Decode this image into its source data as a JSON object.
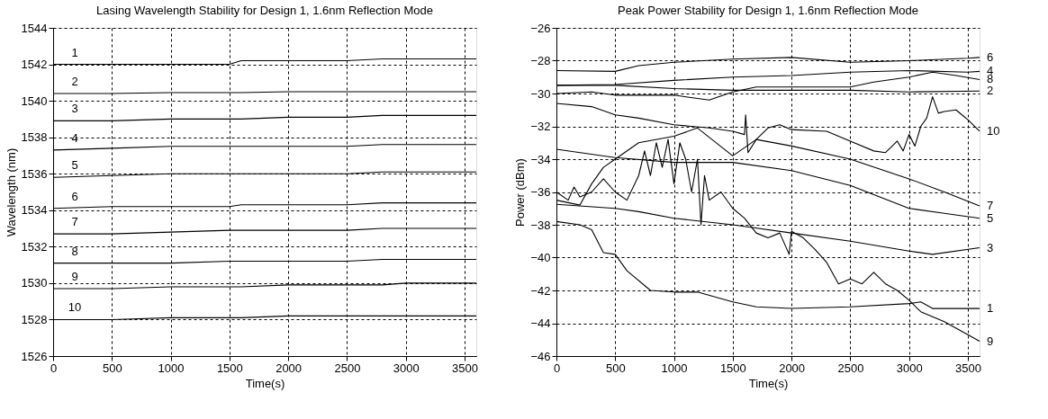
{
  "chart_data": [
    {
      "type": "line",
      "title": "Lasing Wavelength Stability for Design 1, 1.6nm Reflection Mode",
      "xlabel": "Time(s)",
      "ylabel": "Wavelength (nm)",
      "xlim": [
        0,
        3600
      ],
      "ylim": [
        1526,
        1544
      ],
      "xticks": [
        0,
        500,
        1000,
        1500,
        2000,
        2500,
        3000,
        3500
      ],
      "yticks": [
        1526,
        1528,
        1530,
        1532,
        1534,
        1536,
        1538,
        1540,
        1542,
        1544
      ],
      "grid": true,
      "legend": false,
      "x": [
        0,
        500,
        1000,
        1500,
        1600,
        2000,
        2500,
        2800,
        3000,
        3600
      ],
      "series": [
        {
          "name": "1",
          "color": "#000000",
          "values": [
            1542.0,
            1542.0,
            1542.0,
            1542.0,
            1542.2,
            1542.2,
            1542.2,
            1542.3,
            1542.3,
            1542.3
          ]
        },
        {
          "name": "2",
          "color": "#000000",
          "values": [
            1540.4,
            1540.4,
            1540.45,
            1540.45,
            1540.45,
            1540.5,
            1540.5,
            1540.5,
            1540.5,
            1540.5
          ]
        },
        {
          "name": "3",
          "color": "#000000",
          "values": [
            1538.9,
            1538.9,
            1539.0,
            1539.0,
            1539.0,
            1539.1,
            1539.1,
            1539.2,
            1539.2,
            1539.2
          ]
        },
        {
          "name": "4",
          "color": "#000000",
          "values": [
            1537.3,
            1537.4,
            1537.5,
            1537.5,
            1537.5,
            1537.5,
            1537.5,
            1537.6,
            1537.6,
            1537.6
          ]
        },
        {
          "name": "5",
          "color": "#000000",
          "values": [
            1535.8,
            1535.9,
            1536.0,
            1536.0,
            1536.0,
            1536.0,
            1536.0,
            1536.1,
            1536.1,
            1536.1
          ]
        },
        {
          "name": "6",
          "color": "#000000",
          "values": [
            1534.1,
            1534.2,
            1534.2,
            1534.2,
            1534.3,
            1534.3,
            1534.3,
            1534.4,
            1534.4,
            1534.4
          ]
        },
        {
          "name": "7",
          "color": "#000000",
          "values": [
            1532.7,
            1532.7,
            1532.8,
            1532.9,
            1532.9,
            1532.9,
            1532.9,
            1533.0,
            1533.0,
            1533.0
          ]
        },
        {
          "name": "8",
          "color": "#000000",
          "values": [
            1531.1,
            1531.1,
            1531.1,
            1531.2,
            1531.2,
            1531.2,
            1531.2,
            1531.3,
            1531.3,
            1531.3
          ]
        },
        {
          "name": "9",
          "color": "#000000",
          "values": [
            1529.7,
            1529.7,
            1529.8,
            1529.8,
            1529.8,
            1529.9,
            1529.9,
            1529.9,
            1530.0,
            1530.0
          ]
        },
        {
          "name": "10",
          "color": "#000000",
          "values": [
            1528.0,
            1528.0,
            1528.1,
            1528.1,
            1528.1,
            1528.2,
            1528.2,
            1528.2,
            1528.2,
            1528.2
          ]
        }
      ]
    },
    {
      "type": "line",
      "title": "Peak Power Stability for Design 1, 1.6nm Reflection Mode",
      "xlabel": "Time(s)",
      "ylabel": "Power (dBm)",
      "xlim": [
        0,
        3600
      ],
      "ylim": [
        -46,
        -26
      ],
      "xticks": [
        0,
        500,
        1000,
        1500,
        2000,
        2500,
        3000,
        3500
      ],
      "yticks": [
        -46,
        -44,
        -42,
        -40,
        -38,
        -36,
        -34,
        -32,
        -30,
        -28,
        -26
      ],
      "grid": true,
      "legend": false,
      "series": [
        {
          "name": "6",
          "color": "#000000",
          "x": [
            0,
            500,
            700,
            1000,
            1500,
            2000,
            2500,
            3000,
            3500,
            3600
          ],
          "values": [
            -28.6,
            -28.65,
            -28.3,
            -28.1,
            -27.9,
            -27.8,
            -28.1,
            -28.0,
            -27.85,
            -27.8
          ]
        },
        {
          "name": "4",
          "color": "#000000",
          "x": [
            0,
            500,
            1000,
            1500,
            2000,
            2500,
            3000,
            3500,
            3600
          ],
          "values": [
            -29.5,
            -29.45,
            -29.2,
            -29.0,
            -28.9,
            -28.7,
            -28.6,
            -28.7,
            -28.65
          ]
        },
        {
          "name": "8",
          "color": "#000000",
          "x": [
            0,
            300,
            500,
            1000,
            1300,
            1500,
            1700,
            2000,
            2500,
            2700,
            3000,
            3200,
            3400,
            3600
          ],
          "values": [
            -30.0,
            -29.9,
            -30.1,
            -30.1,
            -30.4,
            -29.9,
            -29.6,
            -29.6,
            -29.6,
            -29.3,
            -29.0,
            -28.7,
            -28.9,
            -29.15
          ]
        },
        {
          "name": "2",
          "color": "#000000",
          "x": [
            0,
            500,
            1000,
            1500,
            2000,
            2500,
            3000,
            3600
          ],
          "values": [
            -29.5,
            -29.5,
            -29.7,
            -29.8,
            -29.8,
            -29.8,
            -29.9,
            -29.85
          ]
        },
        {
          "name": "10",
          "color": "#000000",
          "x": [
            0,
            300,
            500,
            700,
            1000,
            1300,
            1500,
            1600,
            1610,
            1630,
            1700,
            1800,
            1900,
            2000,
            2300,
            2500,
            2700,
            2800,
            2900,
            2950,
            3000,
            3050,
            3100,
            3150,
            3200,
            3250,
            3300,
            3400,
            3450,
            3500,
            3600
          ],
          "values": [
            -30.6,
            -30.8,
            -31.3,
            -31.5,
            -31.9,
            -32.1,
            -32.3,
            -32.5,
            -31.3,
            -33.6,
            -32.8,
            -32.1,
            -31.9,
            -32.2,
            -32.3,
            -32.9,
            -33.5,
            -33.6,
            -32.9,
            -33.5,
            -32.5,
            -33.2,
            -32.0,
            -31.5,
            -30.2,
            -31.2,
            -31.1,
            -31.0,
            -31.3,
            -31.6,
            -32.3
          ]
        },
        {
          "name": "7",
          "color": "#000000",
          "x": [
            0,
            200,
            300,
            400,
            500,
            700,
            1000,
            1200,
            1500,
            1700,
            2000,
            2500,
            3000,
            3300,
            3600
          ],
          "values": [
            -36.5,
            -36.8,
            -35.5,
            -34.5,
            -34.0,
            -33.0,
            -32.6,
            -32.1,
            -33.8,
            -32.8,
            -33.2,
            -34.0,
            -35.2,
            -36.0,
            -36.85
          ]
        },
        {
          "name": "5",
          "color": "#000000",
          "x": [
            0,
            500,
            1000,
            1500,
            2000,
            2500,
            3000,
            3300,
            3600
          ],
          "values": [
            -33.4,
            -33.9,
            -34.2,
            -34.2,
            -34.7,
            -35.6,
            -37.0,
            -37.3,
            -37.6
          ]
        },
        {
          "name": "3",
          "color": "#000000",
          "x": [
            0,
            500,
            700,
            1000,
            1500,
            2000,
            2500,
            3000,
            3200,
            3600
          ],
          "values": [
            -36.75,
            -37.0,
            -37.2,
            -37.6,
            -38.0,
            -38.5,
            -39.0,
            -39.6,
            -39.8,
            -39.4
          ]
        },
        {
          "name": "1",
          "color": "#000000",
          "x": [
            0,
            200,
            300,
            400,
            500,
            600,
            800,
            1000,
            1200,
            1500,
            1700,
            2000,
            2500,
            3000,
            3100,
            3200,
            3600
          ],
          "values": [
            -37.8,
            -38.0,
            -38.3,
            -39.7,
            -39.8,
            -40.8,
            -42.0,
            -42.1,
            -42.1,
            -42.7,
            -43.0,
            -43.1,
            -43.0,
            -42.8,
            -42.7,
            -43.1,
            -43.1
          ]
        },
        {
          "name": "9",
          "color": "#000000",
          "x": [
            0,
            100,
            150,
            200,
            300,
            400,
            500,
            600,
            700,
            750,
            800,
            850,
            900,
            950,
            1000,
            1050,
            1100,
            1150,
            1200,
            1230,
            1260,
            1300,
            1400,
            1500,
            1600,
            1700,
            1800,
            1900,
            1980,
            2000,
            2100,
            2200,
            2300,
            2400,
            2500,
            2600,
            2700,
            2800,
            2900,
            3000,
            3100,
            3300,
            3500,
            3600
          ],
          "values": [
            -36.0,
            -36.5,
            -35.7,
            -36.3,
            -36.0,
            -35.2,
            -36.0,
            -36.5,
            -35.0,
            -33.5,
            -35.0,
            -33.0,
            -34.5,
            -32.8,
            -35.5,
            -33.0,
            -34.0,
            -36.0,
            -34.0,
            -38.0,
            -35.0,
            -36.5,
            -36.0,
            -37.0,
            -37.6,
            -38.5,
            -38.8,
            -38.5,
            -39.8,
            -38.4,
            -38.8,
            -39.5,
            -40.3,
            -41.6,
            -41.3,
            -41.6,
            -40.9,
            -41.6,
            -42.0,
            -42.6,
            -43.3,
            -43.9,
            -44.7,
            -45.1
          ]
        }
      ]
    }
  ]
}
